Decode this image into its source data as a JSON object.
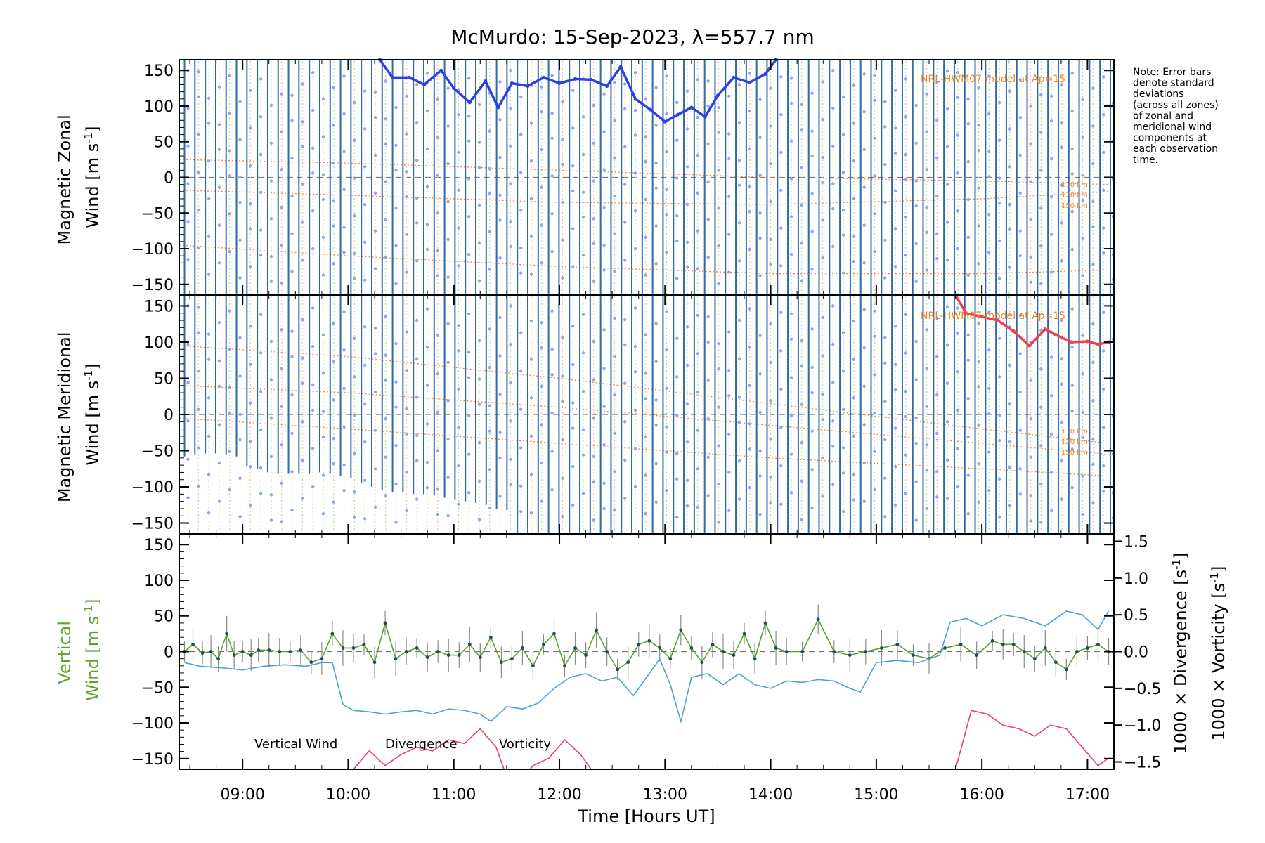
{
  "figure": {
    "title": "McMurdo: 15-Sep-2023, λ=557.7 nm",
    "note_lines": [
      "Note: Error bars",
      "denote standard",
      "deviations",
      "(across all zones)",
      "of zonal and",
      "meridional wind",
      "components at",
      "each observation",
      "time."
    ]
  },
  "chart_data": [
    {
      "type": "line",
      "name": "zonal",
      "ylabel_line1": "Magnetic Zonal",
      "ylabel_line2": "Wind [m s",
      "ylabel_sup": "-1",
      "ylabel_close": "]",
      "ylim": [
        -165,
        165
      ],
      "yticks": [
        "150",
        "100",
        "50",
        "0",
        "−50",
        "−100",
        "−150"
      ],
      "ytick_values": [
        150,
        100,
        50,
        0,
        -50,
        -100,
        -150
      ],
      "model_label": "NRL-HWM07 model at Ap=15",
      "alt_labels": [
        "110 km",
        "120 km",
        "150 km"
      ],
      "series": [
        {
          "name": "Zonal mean wind",
          "color": "#2f3fe0",
          "x": [
            10.3,
            10.42,
            10.58,
            10.72,
            10.88,
            11.0,
            11.15,
            11.3,
            11.42,
            11.55,
            11.7,
            11.85,
            12.0,
            12.15,
            12.3,
            12.45,
            12.58,
            12.72,
            12.86,
            13.0,
            13.12,
            13.25,
            13.38,
            13.5,
            13.65,
            13.8,
            13.95,
            14.05
          ],
          "values": [
            165,
            140,
            140,
            130,
            150,
            125,
            105,
            135,
            98,
            132,
            128,
            140,
            132,
            138,
            137,
            128,
            155,
            110,
            95,
            78,
            88,
            98,
            85,
            115,
            140,
            133,
            145,
            165
          ]
        }
      ],
      "model_curves": [
        {
          "name": "110 km",
          "x": [
            8.4,
            10.0,
            12.0,
            14.0,
            16.0,
            17.2
          ],
          "values": [
            25,
            20,
            10,
            0,
            -5,
            -10
          ]
        },
        {
          "name": "120 km",
          "x": [
            8.4,
            10.0,
            12.0,
            14.0,
            16.0,
            17.2
          ],
          "values": [
            -18,
            -25,
            -35,
            -38,
            -30,
            -20
          ]
        },
        {
          "name": "150 km",
          "x": [
            8.4,
            10.0,
            12.0,
            14.0,
            16.0,
            17.2
          ],
          "values": [
            -95,
            -110,
            -125,
            -135,
            -135,
            -130
          ]
        }
      ]
    },
    {
      "type": "line",
      "name": "meridional",
      "ylabel_line1": "Magnetic Meridional",
      "ylabel_line2": "Wind [m s",
      "ylabel_sup": "-1",
      "ylabel_close": "]",
      "ylim": [
        -165,
        165
      ],
      "yticks": [
        "150",
        "100",
        "50",
        "0",
        "−50",
        "−100",
        "−150"
      ],
      "ytick_values": [
        150,
        100,
        50,
        0,
        -50,
        -100,
        -150
      ],
      "model_label": "NRL-HWM07 model at Ap=15",
      "alt_labels": [
        "110 km",
        "120 km",
        "150 km"
      ],
      "series": [
        {
          "name": "Meridional mean wind",
          "color": "#f04050",
          "x": [
            15.75,
            15.85,
            16.0,
            16.15,
            16.3,
            16.45,
            16.6,
            16.7,
            16.85,
            17.0,
            17.1,
            17.2
          ],
          "values": [
            165,
            140,
            135,
            130,
            115,
            95,
            118,
            110,
            100,
            101,
            97,
            100
          ]
        }
      ],
      "model_curves": [
        {
          "name": "110 km",
          "x": [
            8.4,
            10.0,
            12.0,
            14.0,
            16.0,
            17.2
          ],
          "values": [
            95,
            80,
            50,
            15,
            -20,
            -40
          ]
        },
        {
          "name": "120 km",
          "x": [
            8.4,
            10.0,
            12.0,
            14.0,
            16.0,
            17.2
          ],
          "values": [
            40,
            30,
            10,
            -15,
            -40,
            -55
          ]
        },
        {
          "name": "150 km",
          "x": [
            8.4,
            10.0,
            12.0,
            14.0,
            16.0,
            17.2
          ],
          "values": [
            -5,
            -20,
            -40,
            -60,
            -75,
            -85
          ]
        }
      ],
      "errorbar_lower": {
        "x": [
          8.45,
          8.55,
          8.65,
          8.75,
          8.85,
          8.95,
          9.05,
          9.15,
          9.25,
          9.35,
          9.45,
          9.55,
          9.65,
          9.75,
          9.85,
          9.95,
          10.05,
          10.15,
          10.25,
          10.35,
          10.45,
          10.55,
          10.65,
          10.75,
          10.85,
          10.95,
          11.05,
          11.15,
          11.25,
          11.35,
          11.45,
          11.55,
          11.65
        ],
        "values": [
          -58,
          -55,
          -54,
          -54,
          -55,
          -58,
          -72,
          -75,
          -80,
          -82,
          -82,
          -82,
          -82,
          -80,
          -82,
          -85,
          -88,
          -95,
          -100,
          -105,
          -107,
          -108,
          -110,
          -110,
          -112,
          -115,
          -118,
          -120,
          -122,
          -125,
          -130,
          -132,
          -165
        ]
      }
    },
    {
      "type": "line",
      "name": "vertical",
      "ylabel_line1": "Vertical",
      "ylabel_line2": "Wind [m s",
      "ylabel_sup": "-1",
      "ylabel_close": "]",
      "ylim": [
        -165,
        165
      ],
      "yticks": [
        "150",
        "100",
        "50",
        "0",
        "−50",
        "−100",
        "−150"
      ],
      "ytick_values": [
        150,
        100,
        50,
        0,
        -50,
        -100,
        -150
      ],
      "y2label_a": "1000 × Divergence [s",
      "y2label_b": "1000 × Vorticity [s",
      "y2label_sup": "-1",
      "y2label_close": "]",
      "y2lim": [
        -1.6,
        1.6
      ],
      "y2ticks": [
        "1.5",
        "1.0",
        "0.5",
        "0.0",
        "−0.5",
        "−1.0",
        "−1.5"
      ],
      "y2tick_values": [
        1.5,
        1.0,
        0.5,
        0.0,
        -0.5,
        -1.0,
        -1.5
      ],
      "xticks": [
        "09:00",
        "10:00",
        "11:00",
        "12:00",
        "13:00",
        "14:00",
        "15:00",
        "16:00",
        "17:00"
      ],
      "xtick_values": [
        9,
        10,
        11,
        12,
        13,
        14,
        15,
        16,
        17
      ],
      "xlabel": "Time [Hours UT]",
      "xlim": [
        8.4,
        17.25
      ],
      "legend": [
        {
          "label": "Vertical Wind",
          "color": "#5fa030"
        },
        {
          "label": "Divergence",
          "color": "#4aa2d6"
        },
        {
          "label": "Vorticity",
          "color": "#ee3d78"
        }
      ],
      "series": [
        {
          "name": "Vertical Wind",
          "axis": "left",
          "color": "#5fa030",
          "x": [
            8.45,
            8.53,
            8.62,
            8.7,
            8.77,
            8.85,
            8.92,
            9.0,
            9.08,
            9.15,
            9.25,
            9.35,
            9.45,
            9.55,
            9.65,
            9.75,
            9.85,
            9.95,
            10.05,
            10.15,
            10.25,
            10.35,
            10.45,
            10.55,
            10.65,
            10.75,
            10.85,
            10.95,
            11.05,
            11.15,
            11.25,
            11.35,
            11.45,
            11.55,
            11.65,
            11.75,
            11.85,
            11.95,
            12.05,
            12.15,
            12.25,
            12.35,
            12.45,
            12.55,
            12.65,
            12.75,
            12.85,
            12.95,
            13.05,
            13.15,
            13.25,
            13.35,
            13.45,
            13.55,
            13.65,
            13.75,
            13.85,
            13.95,
            14.05,
            14.15,
            14.3,
            14.45,
            14.6,
            14.75,
            14.9,
            15.05,
            15.2,
            15.35,
            15.5,
            15.65,
            15.8,
            15.95,
            16.1,
            16.2,
            16.3,
            16.4,
            16.5,
            16.6,
            16.7,
            16.8,
            16.9,
            17.0,
            17.1,
            17.2
          ],
          "values": [
            0,
            10,
            -2,
            0,
            -10,
            25,
            -5,
            0,
            -5,
            2,
            2,
            0,
            0,
            2,
            -15,
            -10,
            25,
            5,
            5,
            10,
            -15,
            40,
            -10,
            0,
            5,
            -8,
            0,
            -5,
            -5,
            10,
            -8,
            20,
            -15,
            -10,
            5,
            -20,
            10,
            25,
            -20,
            5,
            -5,
            30,
            0,
            -25,
            -15,
            10,
            15,
            5,
            -10,
            30,
            5,
            -15,
            10,
            0,
            -5,
            25,
            -10,
            40,
            5,
            0,
            0,
            45,
            0,
            -5,
            0,
            5,
            10,
            -5,
            -10,
            5,
            10,
            -5,
            15,
            10,
            10,
            0,
            -10,
            5,
            -15,
            -25,
            0,
            5,
            10,
            0
          ]
        },
        {
          "name": "Divergence",
          "axis": "right",
          "color": "#4aa2d6",
          "x": [
            8.45,
            8.6,
            8.8,
            9.0,
            9.2,
            9.4,
            9.6,
            9.75,
            9.85,
            9.95,
            10.05,
            10.2,
            10.35,
            10.5,
            10.65,
            10.8,
            10.95,
            11.1,
            11.25,
            11.35,
            11.5,
            11.65,
            11.8,
            11.95,
            12.1,
            12.25,
            12.4,
            12.55,
            12.7,
            12.85,
            12.95,
            13.05,
            13.15,
            13.25,
            13.4,
            13.55,
            13.7,
            13.85,
            14.0,
            14.15,
            14.3,
            14.45,
            14.6,
            14.75,
            14.85,
            15.0,
            15.2,
            15.4,
            15.6,
            15.7,
            15.85,
            16.0,
            16.2,
            16.4,
            16.6,
            16.8,
            16.95,
            17.1,
            17.2
          ],
          "values": [
            -0.15,
            -0.2,
            -0.22,
            -0.25,
            -0.2,
            -0.18,
            -0.2,
            -0.15,
            -0.15,
            -0.72,
            -0.8,
            -0.82,
            -0.85,
            -0.82,
            -0.8,
            -0.85,
            -0.78,
            -0.8,
            -0.85,
            -0.95,
            -0.75,
            -0.78,
            -0.7,
            -0.5,
            -0.35,
            -0.3,
            -0.4,
            -0.35,
            -0.6,
            -0.3,
            -0.1,
            -0.45,
            -0.95,
            -0.35,
            -0.3,
            -0.45,
            -0.3,
            -0.45,
            -0.5,
            -0.4,
            -0.42,
            -0.38,
            -0.4,
            -0.5,
            -0.55,
            -0.15,
            -0.12,
            -0.15,
            -0.05,
            0.4,
            0.45,
            0.35,
            0.5,
            0.45,
            0.35,
            0.55,
            0.5,
            0.3,
            0.55
          ]
        },
        {
          "name": "Vorticity",
          "axis": "right",
          "color": "#ee3d78",
          "x": [
            10.05,
            10.2,
            10.35,
            10.5,
            10.65,
            10.8,
            10.95,
            11.1,
            11.25,
            11.4,
            11.5,
            11.6,
            11.75,
            11.9,
            12.05,
            12.2,
            12.35,
            15.75,
            15.9,
            16.05,
            16.2,
            16.35,
            16.5,
            16.65,
            16.8,
            16.95,
            17.1,
            17.2
          ],
          "values": [
            -1.6,
            -1.35,
            -1.55,
            -1.4,
            -1.3,
            -1.35,
            -1.2,
            -1.25,
            -1.05,
            -1.3,
            -1.7,
            -1.8,
            -1.55,
            -1.45,
            -1.2,
            -1.4,
            -1.7,
            -1.6,
            -0.8,
            -0.85,
            -1.0,
            -1.05,
            -1.15,
            -1.0,
            -1.05,
            -1.3,
            -1.55,
            -1.45
          ]
        }
      ]
    }
  ]
}
